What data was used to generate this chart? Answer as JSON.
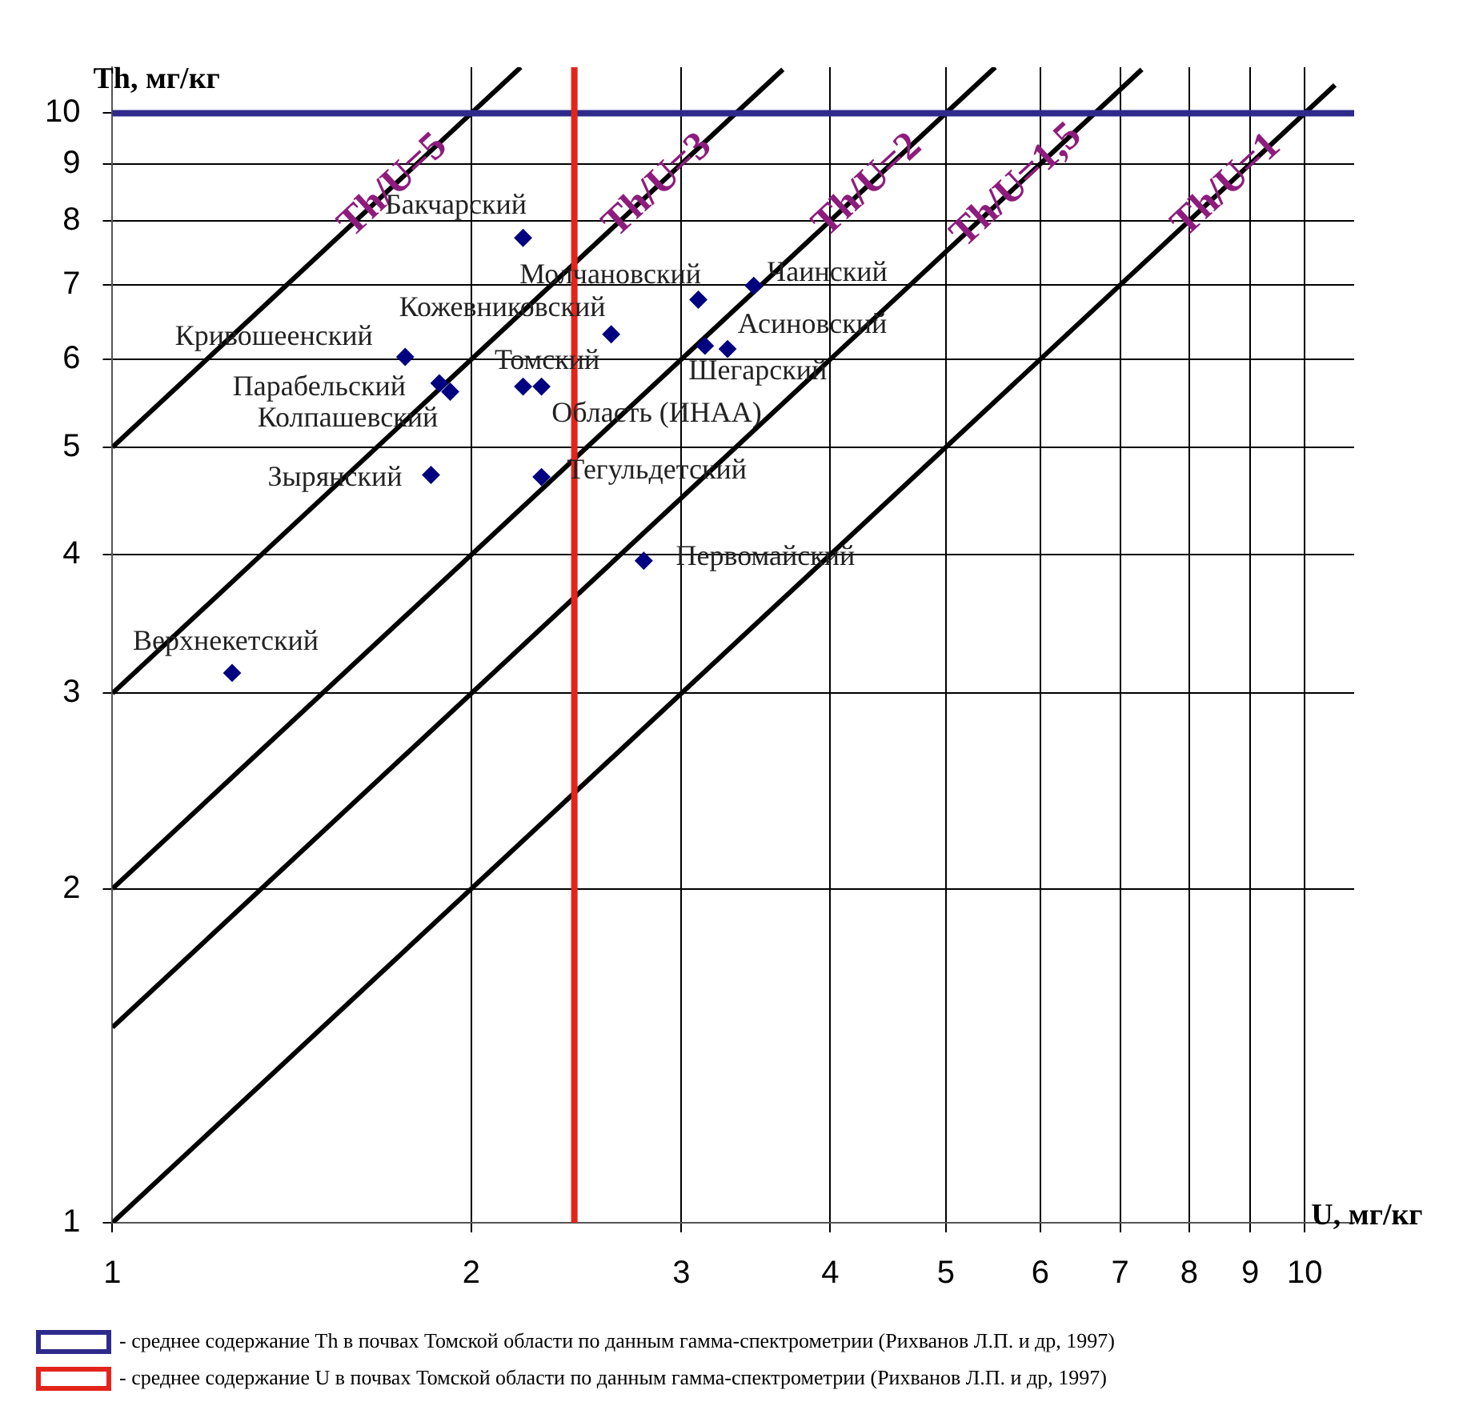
{
  "chart_data": {
    "type": "scatter",
    "xlabel": "U, мг/кг",
    "ylabel": "Th, мг/кг",
    "log": "xy",
    "xlim": [
      1,
      11
    ],
    "ylim": [
      1,
      11
    ],
    "xticks": [
      1,
      2,
      3,
      4,
      5,
      6,
      7,
      8,
      9,
      10
    ],
    "yticks": [
      1,
      2,
      3,
      4,
      5,
      6,
      7,
      8,
      9,
      10
    ],
    "grid": true,
    "legend": "bottom",
    "marker": "diamond",
    "series": [
      {
        "color": "#000080",
        "x": [
          2.21,
          3.1,
          3.45,
          2.62,
          3.28,
          3.14,
          1.76,
          1.88,
          1.92,
          2.21,
          2.29,
          1.85,
          2.29,
          2.79,
          1.26
        ],
        "values": [
          7.72,
          6.79,
          6.99,
          6.32,
          6.13,
          6.17,
          6.03,
          5.71,
          5.61,
          5.67,
          5.67,
          4.72,
          4.7,
          3.95,
          3.13
        ]
      },
      {
        "type": "line",
        "name": "Th/U=5",
        "color": "#000000",
        "marker": "none",
        "x": [
          1,
          2.2
        ],
        "values": [
          5,
          11
        ]
      },
      {
        "type": "line",
        "name": "Th/U=3",
        "color": "#000000",
        "marker": "none",
        "x": [
          1,
          3.65
        ],
        "values": [
          3,
          10.95
        ]
      },
      {
        "type": "line",
        "name": "Th/U=2",
        "color": "#000000",
        "marker": "none",
        "x": [
          1,
          5.5
        ],
        "values": [
          2,
          11
        ]
      },
      {
        "type": "line",
        "name": "Th/U=1,5",
        "color": "#000000",
        "marker": "none",
        "x": [
          1,
          7.3
        ],
        "values": [
          1.5,
          10.95
        ]
      },
      {
        "type": "line",
        "name": "Th/U=1",
        "color": "#000000",
        "marker": "none",
        "x": [
          1,
          10.6
        ],
        "values": [
          1,
          10.6
        ]
      }
    ],
    "ref_lines": [
      {
        "axis": "y",
        "value": 10,
        "color": "#2e2a8c",
        "label": "- среднее содержание Th в почвах Томской области по данным гамма-спектрометрии (Рихванов Л.П. и др, 1997)"
      },
      {
        "axis": "x",
        "value": 2.44,
        "color": "#e3241b",
        "label": "- среднее содержание U в почвах Томской области по данным гамма-спектрометрии (Рихванов Л.П. и др, 1997)"
      }
    ],
    "annotations": [
      {
        "text": "Бакчарский",
        "x": 2.21,
        "y": 7.72
      },
      {
        "text": "Молчановский",
        "x": 3.1,
        "y": 6.79
      },
      {
        "text": "Чаинский",
        "x": 3.45,
        "y": 6.99
      },
      {
        "text": "Кожевниковский",
        "x": 2.62,
        "y": 6.32
      },
      {
        "text": "Асиновский",
        "x": 3.28,
        "y": 6.13
      },
      {
        "text": "Шегарский",
        "x": 3.14,
        "y": 6.17
      },
      {
        "text": "Кривошеенский",
        "x": 1.76,
        "y": 6.03
      },
      {
        "text": "Парабельский",
        "x": 1.88,
        "y": 5.71
      },
      {
        "text": "Колпашевский",
        "x": 1.92,
        "y": 5.61
      },
      {
        "text": "Томский",
        "x": 2.21,
        "y": 5.67
      },
      {
        "text": "Область (ИНАА)",
        "x": 2.29,
        "y": 5.67
      },
      {
        "text": "Зырянский",
        "x": 1.85,
        "y": 4.72
      },
      {
        "text": "Тегульдетский",
        "x": 2.29,
        "y": 4.7
      },
      {
        "text": "Первомайский",
        "x": 2.79,
        "y": 3.95
      },
      {
        "text": "Верхнекетский",
        "x": 1.26,
        "y": 3.13
      }
    ]
  }
}
